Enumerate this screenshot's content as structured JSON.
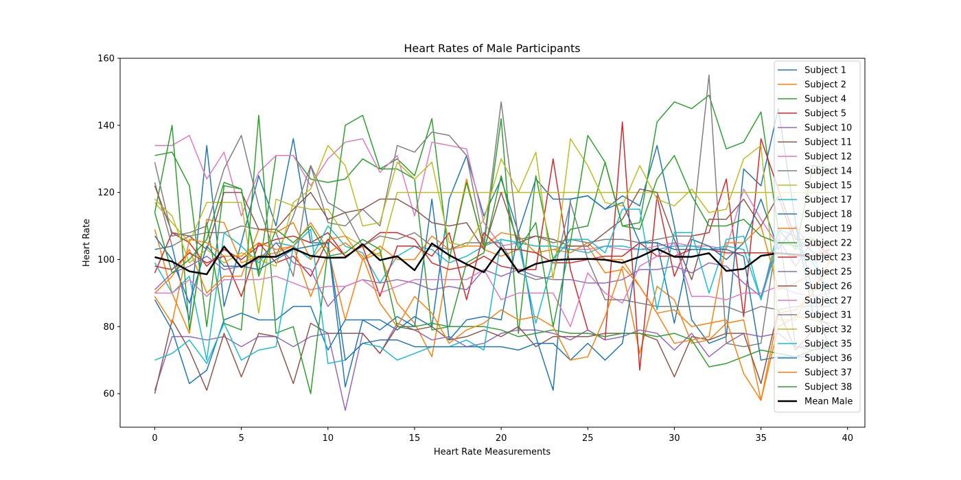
{
  "chart_data": {
    "type": "line",
    "title": "Heart Rates of Male Participants",
    "xlabel": "Heart Rate Measurements",
    "ylabel": "Heart Rate",
    "xlim": [
      -2,
      41
    ],
    "ylim": [
      50,
      160
    ],
    "xticks": [
      0,
      5,
      10,
      15,
      20,
      25,
      30,
      35,
      40
    ],
    "yticks": [
      60,
      80,
      100,
      120,
      140,
      160
    ],
    "grid": false,
    "legend_position": "upper-right",
    "series": [
      {
        "name": "Subject 1",
        "color": "#1f77b4",
        "values": [
          103,
          104,
          82,
          134,
          86,
          105,
          125,
          110,
          136,
          105,
          105,
          62,
          82,
          82,
          79,
          83,
          80,
          118,
          131,
          113,
          124,
          108,
          124,
          118,
          118,
          119,
          115,
          119,
          116,
          134,
          110,
          82,
          75,
          77,
          127,
          122,
          145,
          111,
          90,
          72
        ]
      },
      {
        "name": "Subject 2",
        "color": "#ff7f0e",
        "values": [
          109,
          90,
          78,
          112,
          111,
          99,
          101,
          102,
          104,
          111,
          103,
          82,
          100,
          102,
          87,
          81,
          71,
          100,
          124,
          103,
          101,
          103,
          102,
          103,
          104,
          104,
          96,
          97,
          72,
          92,
          88,
          75,
          76,
          81,
          82,
          58,
          80,
          83,
          82,
          81
        ]
      },
      {
        "name": "Subject 4",
        "color": "#2ca02c",
        "values": [
          131,
          132,
          122,
          80,
          122,
          121,
          96,
          131,
          131,
          124,
          123,
          124,
          130,
          127,
          130,
          125,
          142,
          100,
          123,
          104,
          142,
          78,
          125,
          100,
          109,
          110,
          129,
          110,
          111,
          141,
          147,
          145,
          149,
          133,
          135,
          144,
          109,
          103,
          128,
          127
        ]
      },
      {
        "name": "Subject 5",
        "color": "#d62728",
        "values": [
          96,
          108,
          105,
          98,
          103,
          100,
          104,
          106,
          107,
          105,
          108,
          101,
          104,
          108,
          108,
          106,
          99,
          97,
          98,
          101,
          98,
          97,
          97,
          130,
          97,
          79,
          76,
          141,
          67,
          119,
          95,
          107,
          108,
          124,
          83,
          136,
          121,
          106,
          106,
          101
        ]
      },
      {
        "name": "Subject 10",
        "color": "#9467bd",
        "values": [
          61,
          77,
          77,
          76,
          77,
          74,
          77,
          77,
          74,
          77,
          78,
          55,
          78,
          72,
          81,
          79,
          76,
          77,
          74,
          75,
          78,
          79,
          79,
          78,
          76,
          79,
          76,
          77,
          79,
          78,
          73,
          78,
          71,
          75,
          78,
          77,
          78,
          74,
          74,
          73
        ]
      },
      {
        "name": "Subject 11",
        "color": "#8c564b",
        "values": [
          60,
          82,
          73,
          61,
          78,
          65,
          78,
          77,
          63,
          81,
          78,
          78,
          78,
          72,
          80,
          79,
          80,
          76,
          77,
          79,
          77,
          80,
          74,
          77,
          77,
          77,
          78,
          78,
          78,
          76,
          65,
          77,
          76,
          78,
          78,
          63,
          85,
          73,
          79,
          80
        ]
      },
      {
        "name": "Subject 12",
        "color": "#e377c2",
        "values": [
          134,
          134,
          137,
          124,
          132,
          113,
          126,
          131,
          131,
          122,
          130,
          135,
          136,
          126,
          131,
          113,
          135,
          134,
          133,
          111,
          104,
          105,
          104,
          104,
          103,
          103,
          104,
          103,
          103,
          104,
          105,
          104,
          104,
          103,
          121,
          112,
          104,
          110,
          102,
          103
        ]
      },
      {
        "name": "Subject 14",
        "color": "#7f7f7f",
        "values": [
          123,
          104,
          107,
          108,
          108,
          110,
          109,
          108,
          95,
          128,
          111,
          110,
          115,
          110,
          134,
          132,
          138,
          137,
          131,
          105,
          147,
          106,
          107,
          105,
          106,
          105,
          106,
          106,
          105,
          106,
          107,
          107,
          155,
          75,
          74,
          75,
          109,
          74,
          73,
          74
        ]
      },
      {
        "name": "Subject 15",
        "color": "#bcbd22",
        "values": [
          117,
          111,
          105,
          117,
          117,
          117,
          84,
          118,
          116,
          115,
          115,
          107,
          104,
          101,
          120,
          120,
          120,
          120,
          120,
          120,
          120,
          120,
          120,
          120,
          120,
          120,
          120,
          120,
          120,
          120,
          120,
          120,
          120,
          120,
          120,
          120,
          120,
          120,
          120,
          120
        ]
      },
      {
        "name": "Subject 17",
        "color": "#17becf",
        "values": [
          99,
          90,
          95,
          70,
          108,
          104,
          99,
          105,
          104,
          100,
          110,
          104,
          102,
          93,
          101,
          104,
          103,
          99,
          101,
          104,
          106,
          105,
          104,
          104,
          103,
          102,
          104,
          104,
          103,
          103,
          104,
          104,
          103,
          104,
          103,
          88,
          109,
          107,
          102,
          86
        ]
      },
      {
        "name": "Subject 18",
        "color": "#1f77b4",
        "values": [
          88,
          79,
          63,
          67,
          82,
          84,
          82,
          82,
          86,
          86,
          73,
          82,
          82,
          79,
          83,
          80,
          118,
          76,
          82,
          83,
          82,
          108,
          77,
          61,
          118,
          119,
          115,
          117,
          105,
          105,
          81,
          106,
          104,
          100,
          105,
          118,
          103,
          110,
          84,
          80
        ]
      },
      {
        "name": "Subject 19",
        "color": "#ff7f0e",
        "values": [
          90,
          95,
          103,
          90,
          95,
          95,
          109,
          108,
          111,
          100,
          106,
          107,
          100,
          104,
          100,
          100,
          107,
          103,
          104,
          104,
          108,
          107,
          102,
          103,
          102,
          105,
          100,
          100,
          92,
          84,
          75,
          76,
          77,
          105,
          105,
          110,
          91,
          93,
          96,
          91
        ]
      },
      {
        "name": "Subject 22",
        "color": "#2ca02c",
        "values": [
          114,
          140,
          79,
          111,
          81,
          79,
          143,
          78,
          80,
          60,
          103,
          140,
          143,
          127,
          127,
          124,
          79,
          80,
          80,
          80,
          79,
          77,
          78,
          79,
          78,
          78,
          77,
          78,
          78,
          77,
          78,
          76,
          68,
          69,
          71,
          73,
          72,
          71,
          73,
          74
        ]
      },
      {
        "name": "Subject 23",
        "color": "#d62728",
        "values": [
          98,
          97,
          102,
          99,
          101,
          89,
          105,
          99,
          101,
          95,
          106,
          101,
          104,
          89,
          104,
          104,
          101,
          108,
          88,
          108,
          103,
          103,
          102,
          99,
          99,
          100,
          101,
          101,
          105,
          101,
          101,
          103,
          103,
          102,
          102,
          102,
          102,
          101,
          101,
          103
        ]
      },
      {
        "name": "Subject 25",
        "color": "#9467bd",
        "values": [
          91,
          96,
          98,
          101,
          97,
          98,
          100,
          105,
          99,
          97,
          86,
          92,
          94,
          93,
          94,
          93,
          91,
          92,
          91,
          97,
          95,
          97,
          95,
          94,
          94,
          93,
          93,
          94,
          97,
          97,
          98,
          96,
          99,
          98,
          93,
          89,
          106,
          98,
          106,
          104
        ]
      },
      {
        "name": "Subject 26",
        "color": "#8c564b",
        "values": [
          122,
          108,
          107,
          103,
          120,
          120,
          109,
          109,
          115,
          120,
          112,
          114,
          115,
          118,
          118,
          115,
          111,
          110,
          111,
          103,
          120,
          105,
          107,
          106,
          104,
          104,
          108,
          112,
          121,
          120,
          106,
          94,
          112,
          112,
          118,
          110,
          119,
          104,
          104,
          104
        ]
      },
      {
        "name": "Subject 27",
        "color": "#e377c2",
        "values": [
          90,
          90,
          94,
          89,
          94,
          94,
          94,
          95,
          93,
          91,
          92,
          92,
          94,
          90,
          92,
          94,
          94,
          94,
          94,
          97,
          88,
          90,
          90,
          90,
          80,
          96,
          90,
          87,
          98,
          101,
          105,
          89,
          89,
          88,
          90,
          90,
          92,
          90,
          89,
          90
        ]
      },
      {
        "name": "Subject 31",
        "color": "#7f7f7f",
        "values": [
          129,
          107,
          108,
          110,
          127,
          137,
          116,
          101,
          113,
          128,
          117,
          114,
          104,
          107,
          106,
          108,
          104,
          103,
          105,
          105,
          105,
          96,
          94,
          95,
          117,
          100,
          88,
          88,
          87,
          86,
          86,
          86,
          86,
          86,
          84,
          86,
          85,
          86,
          86,
          86
        ]
      },
      {
        "name": "Subject 32",
        "color": "#bcbd22",
        "values": [
          118,
          113,
          99,
          103,
          99,
          102,
          100,
          98,
          117,
          121,
          134,
          128,
          110,
          111,
          129,
          124,
          129,
          105,
          104,
          112,
          130,
          120,
          132,
          94,
          136,
          128,
          117,
          116,
          128,
          118,
          116,
          121,
          114,
          115,
          130,
          134,
          82,
          82,
          92,
          97
        ]
      },
      {
        "name": "Subject 35",
        "color": "#17becf",
        "values": [
          70,
          72,
          76,
          69,
          81,
          70,
          73,
          74,
          104,
          109,
          69,
          70,
          75,
          74,
          70,
          72,
          74,
          74,
          76,
          73,
          106,
          105,
          81,
          100,
          106,
          106,
          102,
          115,
          115,
          85,
          108,
          108,
          90,
          106,
          107,
          88,
          105,
          104,
          99,
          90
        ]
      },
      {
        "name": "Subject 36",
        "color": "#1f77b4",
        "values": [
          107,
          100,
          87,
          104,
          98,
          98,
          97,
          100,
          103,
          104,
          105,
          70,
          75,
          76,
          76,
          74,
          74,
          74,
          74,
          74,
          74,
          73,
          75,
          75,
          70,
          75,
          70,
          75,
          105,
          105,
          103,
          103,
          103,
          103,
          101,
          70,
          71,
          71,
          71,
          70
        ]
      },
      {
        "name": "Subject 37",
        "color": "#ff7f0e",
        "values": [
          89,
          81,
          106,
          105,
          101,
          101,
          105,
          103,
          104,
          89,
          102,
          105,
          101,
          87,
          80,
          89,
          84,
          75,
          79,
          81,
          85,
          82,
          83,
          80,
          70,
          71,
          83,
          98,
          92,
          84,
          85,
          80,
          81,
          82,
          66,
          58,
          84,
          85,
          90,
          100
        ]
      },
      {
        "name": "Subject 38",
        "color": "#2ca02c",
        "values": [
          114,
          96,
          100,
          106,
          123,
          121,
          95,
          109,
          105,
          110,
          101,
          102,
          106,
          103,
          80,
          80,
          81,
          80,
          99,
          102,
          125,
          103,
          111,
          80,
          105,
          137,
          129,
          110,
          109,
          124,
          131,
          119,
          110,
          110,
          112,
          107,
          105,
          104,
          106,
          104
        ]
      },
      {
        "name": "Mean Male",
        "color": "#000000",
        "values": [
          100.7,
          99.4,
          96.5,
          95.6,
          103.9,
          97.7,
          100.8,
          100.8,
          103.3,
          101.1,
          100.5,
          100.6,
          104.6,
          99.8,
          101.0,
          96.8,
          104.8,
          101.3,
          98.6,
          96.2,
          103.5,
          96.3,
          98.7,
          99.8,
          100.1,
          100.2,
          99.9,
          99.0,
          100.8,
          103.2,
          100.8,
          100.8,
          101.9,
          96.6,
          97.2,
          101.1,
          101.9,
          101.5,
          101.0,
          101.4
        ]
      }
    ]
  }
}
